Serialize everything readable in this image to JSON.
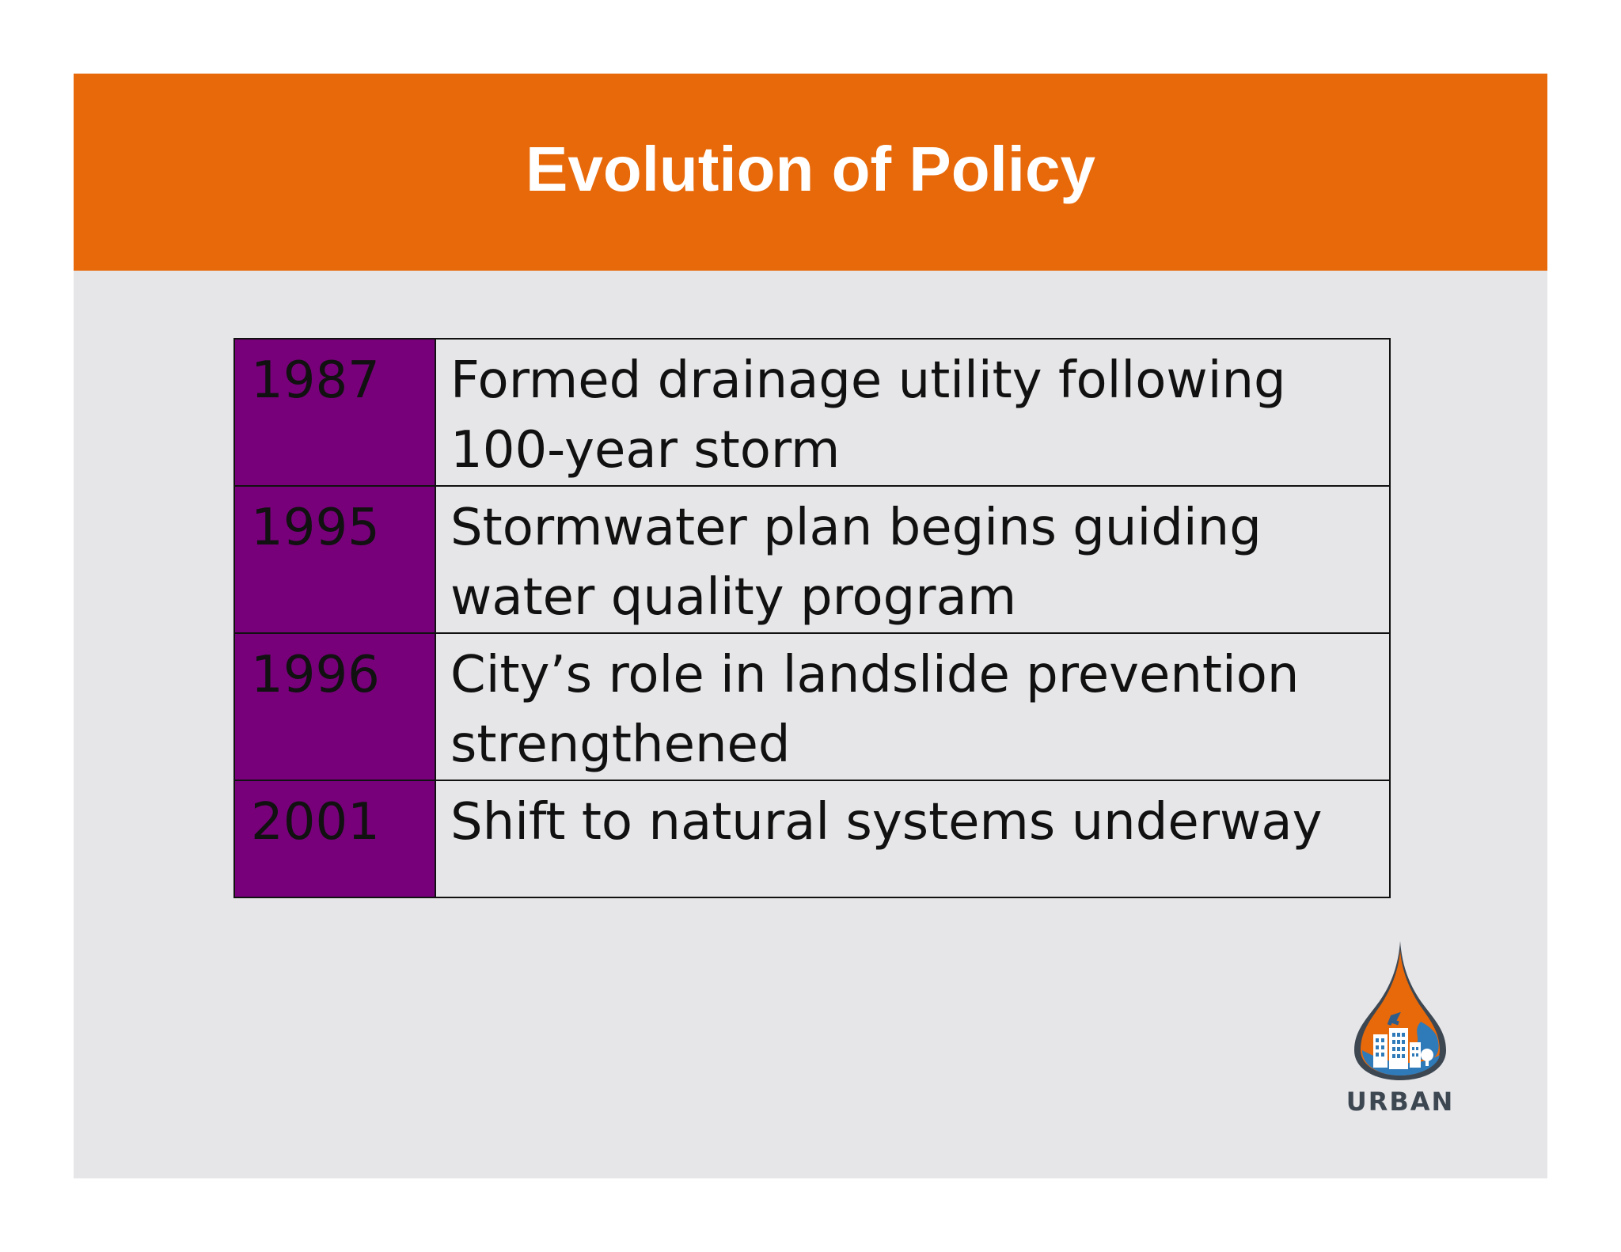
{
  "title": "Evolution of Policy",
  "timeline": [
    {
      "year": "1987",
      "line1": "Formed drainage utility following",
      "line2": "100-year storm"
    },
    {
      "year": "1995",
      "line1": "Stormwater plan begins guiding",
      "line2": "water quality program"
    },
    {
      "year": "1996",
      "line1": "City’s role in landslide prevention",
      "line2": "strengthened"
    },
    {
      "year": "2001",
      "line1": "Shift to natural systems underway",
      "line2": ""
    }
  ],
  "logo": {
    "text": "URBAN",
    "icon": "water-drop-city-icon"
  },
  "colors": {
    "title_bar": "#e8690a",
    "year_cell": "#77007a",
    "slide_background": "#e6e6e8"
  }
}
